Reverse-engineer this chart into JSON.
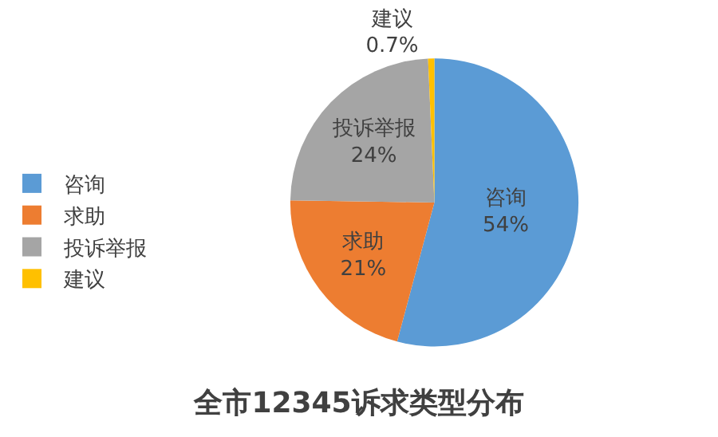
{
  "chart_data": {
    "type": "pie",
    "title": "全市12345诉求类型分布",
    "categories": [
      "咨询",
      "求助",
      "投诉举报",
      "建议"
    ],
    "values": [
      54,
      21,
      24,
      0.7
    ],
    "value_labels": [
      "54%",
      "21%",
      "24%",
      "0.7%"
    ],
    "colors": [
      "#5b9bd5",
      "#ed7d31",
      "#a5a5a5",
      "#ffc000"
    ],
    "legend": "left"
  }
}
